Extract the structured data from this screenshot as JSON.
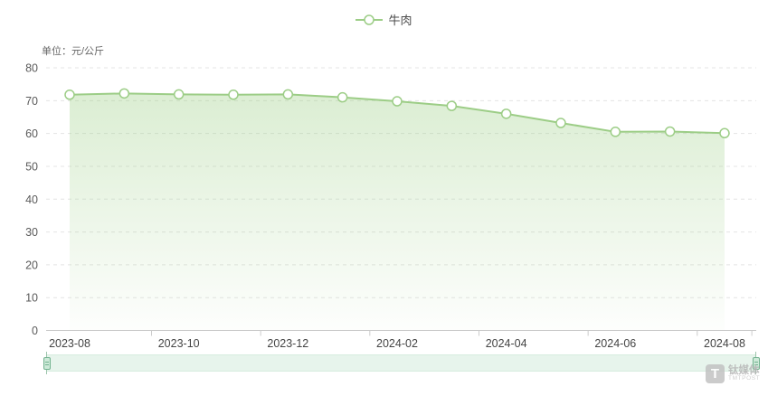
{
  "legend": {
    "label": "牛肉"
  },
  "unit_label": "单位：元/公斤",
  "watermark": {
    "name": "钛媒体",
    "sub": "TMTPOST"
  },
  "colors": {
    "line": "#9ccd86",
    "marker_fill": "#ffffff",
    "area_top": "rgba(160,209,138,0.42)",
    "area_bottom": "rgba(160,209,138,0.02)",
    "grid_line": "#e4e4e4",
    "axis_line": "#c8c8c8",
    "tick": "#cccccc",
    "x_label": "#444444",
    "y_label": "#5a5a5a",
    "slider_fill": "#e7f4ec"
  },
  "chart_data": {
    "type": "line",
    "title": "",
    "x": [
      "2023-08",
      "2023-09",
      "2023-10",
      "2023-11",
      "2023-12",
      "2024-01",
      "2024-02",
      "2024-03",
      "2024-04",
      "2024-05",
      "2024-06",
      "2024-07",
      "2024-08"
    ],
    "series": [
      {
        "name": "牛肉",
        "values": [
          71.8,
          72.2,
          71.9,
          71.8,
          71.9,
          71.0,
          69.8,
          68.4,
          66.0,
          63.2,
          60.5,
          60.6,
          60.1
        ]
      }
    ],
    "visible_x_labels": [
      "2023-08",
      "2023-10",
      "2023-12",
      "2024-02",
      "2024-04",
      "2024-06",
      "2024-08"
    ],
    "xlabel": "",
    "ylabel": "元/公斤",
    "ylim": [
      0,
      80
    ],
    "y_ticks": [
      0,
      10,
      20,
      30,
      40,
      50,
      60,
      70,
      80
    ],
    "grid": true,
    "grid_style": "dashed",
    "legend_position": "top-center",
    "area": true,
    "has_datazoom_slider": true
  }
}
